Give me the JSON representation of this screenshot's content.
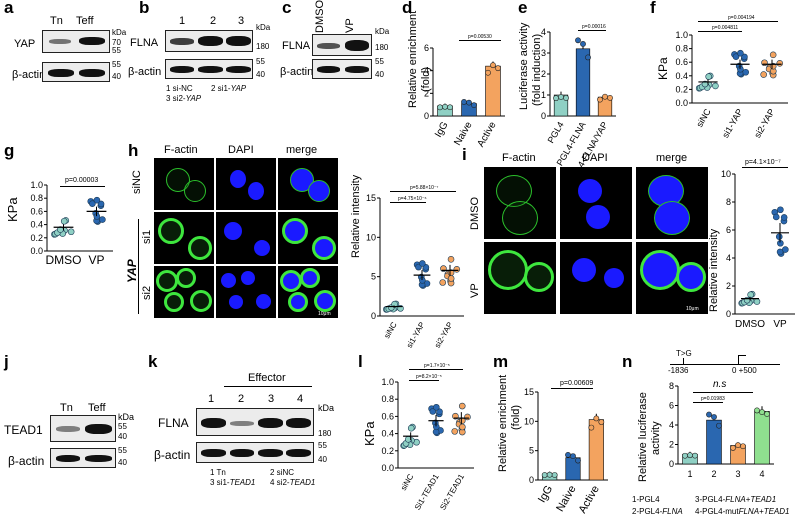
{
  "panels": {
    "a": {
      "letter": "a",
      "lanes": [
        "Tn",
        "Teff"
      ],
      "rows": [
        "YAP",
        "β-actin"
      ],
      "markers": [
        "kDa",
        "70",
        "55",
        "55",
        "40"
      ]
    },
    "b": {
      "letter": "b",
      "lanes": [
        "1",
        "2",
        "3"
      ],
      "rows": [
        "FLNA",
        "β-actin"
      ],
      "markers": [
        "kDa",
        "180",
        "55",
        "40"
      ],
      "legend1": "1 si-NC",
      "legend2": "2 si1-",
      "legend2i": "YAP",
      "legend3": "3 si2-",
      "legend3i": "YAP"
    },
    "c": {
      "letter": "c",
      "lanes": [
        "DMSO",
        "VP"
      ],
      "rows": [
        "FLNA",
        "β-actin"
      ],
      "markers": [
        "kDa",
        "180",
        "55",
        "40"
      ]
    },
    "d": {
      "letter": "d",
      "ylabel1": "Relative enrichment",
      "ylabel2": "(fold)",
      "yticks": [
        "0",
        "2",
        "4",
        "6"
      ],
      "categories": [
        "IgG",
        "Naive",
        "Active"
      ],
      "p": "p=0.00530"
    },
    "e": {
      "letter": "e",
      "ylabel1": "Luciferase activity",
      "ylabel2": "(fold induction)",
      "yticks": [
        "0",
        "1",
        "2",
        "3",
        "4"
      ],
      "cat1": "PGL4",
      "cat2a": "PGL4-",
      "cat2b": "FLNA",
      "cat3a": "PGL4-",
      "cat3b": "FLNA/YAP",
      "p": "p=0.00016"
    },
    "f": {
      "letter": "f",
      "ylabel": "KPa",
      "yticks": [
        "0.0",
        "0.2",
        "0.4",
        "0.6",
        "0.8",
        "1.0"
      ],
      "cat1": "siNC",
      "cat2a": "si1-",
      "cat2b": "YAP",
      "cat3a": "si2-",
      "cat3b": "YAP",
      "p1": "p=0.004811",
      "p2": "p=0.004194"
    },
    "g": {
      "letter": "g",
      "ylabel": "KPa",
      "yticks": [
        "0.0",
        "0.2",
        "0.4",
        "0.6",
        "0.8",
        "1.0"
      ],
      "categories": [
        "DMSO",
        "VP"
      ],
      "p": "p=0.00003"
    },
    "h": {
      "letter": "h",
      "cols": [
        "F-actin",
        "DAPI",
        "merge"
      ],
      "rows": [
        "siNC",
        "si1",
        "si2"
      ],
      "group": "YAP",
      "scale": "10μm",
      "ylabel": "Relative intensity",
      "yticks": [
        "0",
        "5",
        "10",
        "15"
      ],
      "cat1": "siNC",
      "cat2a": "si1-",
      "cat2b": "YAP",
      "cat3a": "si2-",
      "cat3b": "YAP",
      "p1": "p=4.75×10⁻⁶",
      "p2": "p=5.88×10⁻⁷"
    },
    "i": {
      "letter": "i",
      "cols": [
        "F-actin",
        "DAPI",
        "merge"
      ],
      "rows": [
        "DMSO",
        "VP"
      ],
      "scale": "10μm",
      "ylabel": "Relative intensity",
      "yticks": [
        "0",
        "2",
        "4",
        "6",
        "8",
        "10"
      ],
      "categories": [
        "DMSO",
        "VP"
      ],
      "p": "p=4.1×10⁻⁷"
    },
    "j": {
      "letter": "j",
      "lanes": [
        "Tn",
        "Teff"
      ],
      "rows": [
        "TEAD1",
        "β-actin"
      ],
      "markers": [
        "kDa",
        "55",
        "40",
        "55",
        "40"
      ]
    },
    "k": {
      "letter": "k",
      "header": "Effector",
      "lanes": [
        "1",
        "2",
        "3",
        "4"
      ],
      "rows": [
        "FLNA",
        "β-actin"
      ],
      "markers": [
        "kDa",
        "180",
        "55",
        "40"
      ],
      "legend1": "1 Tn",
      "legend2": "2 siNC",
      "legend3": "3 si1-",
      "legend3i": "TEAD1",
      "legend4": "4 si2-",
      "legend4i": "TEAD1"
    },
    "l": {
      "letter": "l",
      "ylabel": "KPa",
      "yticks": [
        "0.0",
        "0.2",
        "0.4",
        "0.6",
        "0.8",
        "1.0"
      ],
      "cat1": "siNC",
      "cat2a": "Si1-",
      "cat2b": "TEAD1",
      "cat3a": "Si2-",
      "cat3b": "TEAD1",
      "p1": "p=8.2×10⁻⁵",
      "p2": "p=1.7×10⁻⁵"
    },
    "m": {
      "letter": "m",
      "ylabel1": "Relative enrichment",
      "ylabel2": "(fold)",
      "yticks": [
        "0",
        "5",
        "10",
        "15"
      ],
      "categories": [
        "IgG",
        "Naive",
        "Active"
      ],
      "p": "p=0.00609"
    },
    "n": {
      "letter": "n",
      "ylabel1": "Relative luciferase",
      "ylabel2": "activity",
      "yticks": [
        "0",
        "2",
        "4",
        "6",
        "8"
      ],
      "categories": [
        "1",
        "2",
        "3",
        "4"
      ],
      "ns": "n.s",
      "p": "p=0.01983",
      "mut": "T>G",
      "pos1": "-1836",
      "pos2": "0 +500",
      "leg1": "1-PGL4",
      "leg2a": "2-PGL4-",
      "leg2b": "FLNA",
      "leg3a": "3-PGL4-",
      "leg3b": "FLNA+TEAD1",
      "leg4a": "4-PGL4-mut",
      "leg4b": "FLNA+TEAD1"
    }
  },
  "chart_data": [
    {
      "panel": "d",
      "type": "bar",
      "categories": [
        "IgG",
        "Naive",
        "Active"
      ],
      "values": [
        0.9,
        1.1,
        4.4
      ],
      "ylim": [
        0,
        6
      ],
      "colors": [
        "#8fd0c4",
        "#2a67b0",
        "#f3a35f"
      ]
    },
    {
      "panel": "e",
      "type": "bar",
      "categories": [
        "PGL4",
        "PGL4-FLNA",
        "PGL4-FLNA/YAP"
      ],
      "values": [
        1.0,
        3.2,
        0.9
      ],
      "ylim": [
        0,
        4
      ],
      "colors": [
        "#8fd0c4",
        "#2a67b0",
        "#f3a35f"
      ]
    },
    {
      "panel": "f",
      "type": "scatter",
      "categories": [
        "siNC",
        "si1-YAP",
        "si2-YAP"
      ],
      "means": [
        0.31,
        0.57,
        0.57
      ],
      "ylim": [
        0,
        1.0
      ],
      "colors": [
        "#8fd0c4",
        "#2a67b0",
        "#f3a35f"
      ]
    },
    {
      "panel": "g",
      "type": "scatter",
      "categories": [
        "DMSO",
        "VP"
      ],
      "means": [
        0.36,
        0.6
      ],
      "ylim": [
        0,
        1.0
      ],
      "colors": [
        "#8fd0c4",
        "#2a67b0"
      ]
    },
    {
      "panel": "h",
      "type": "scatter",
      "categories": [
        "siNC",
        "si1-YAP",
        "si2-YAP"
      ],
      "means": [
        1.2,
        5.2,
        5.8
      ],
      "ylim": [
        0,
        15
      ],
      "colors": [
        "#8fd0c4",
        "#2a67b0",
        "#f3a35f"
      ]
    },
    {
      "panel": "i",
      "type": "scatter",
      "categories": [
        "DMSO",
        "VP"
      ],
      "means": [
        1.1,
        5.8
      ],
      "ylim": [
        0,
        10
      ],
      "colors": [
        "#8fd0c4",
        "#2a67b0"
      ]
    },
    {
      "panel": "l",
      "type": "scatter",
      "categories": [
        "siNC",
        "Si1-TEAD1",
        "Si2-TEAD1"
      ],
      "means": [
        0.37,
        0.55,
        0.58
      ],
      "ylim": [
        0,
        1.0
      ],
      "colors": [
        "#8fd0c4",
        "#2a67b0",
        "#f3a35f"
      ]
    },
    {
      "panel": "m",
      "type": "bar",
      "categories": [
        "IgG",
        "Naive",
        "Active"
      ],
      "values": [
        1.0,
        3.8,
        10.3
      ],
      "ylim": [
        0,
        15
      ],
      "colors": [
        "#8fd0c4",
        "#2a67b0",
        "#f3a35f"
      ]
    },
    {
      "panel": "n",
      "type": "bar",
      "categories": [
        "1",
        "2",
        "3",
        "4"
      ],
      "values": [
        1.0,
        4.5,
        1.9,
        5.4
      ],
      "ylim": [
        0,
        8
      ],
      "colors": [
        "#8fd0c4",
        "#2a67b0",
        "#f3a35f",
        "#8fe08f"
      ]
    }
  ]
}
